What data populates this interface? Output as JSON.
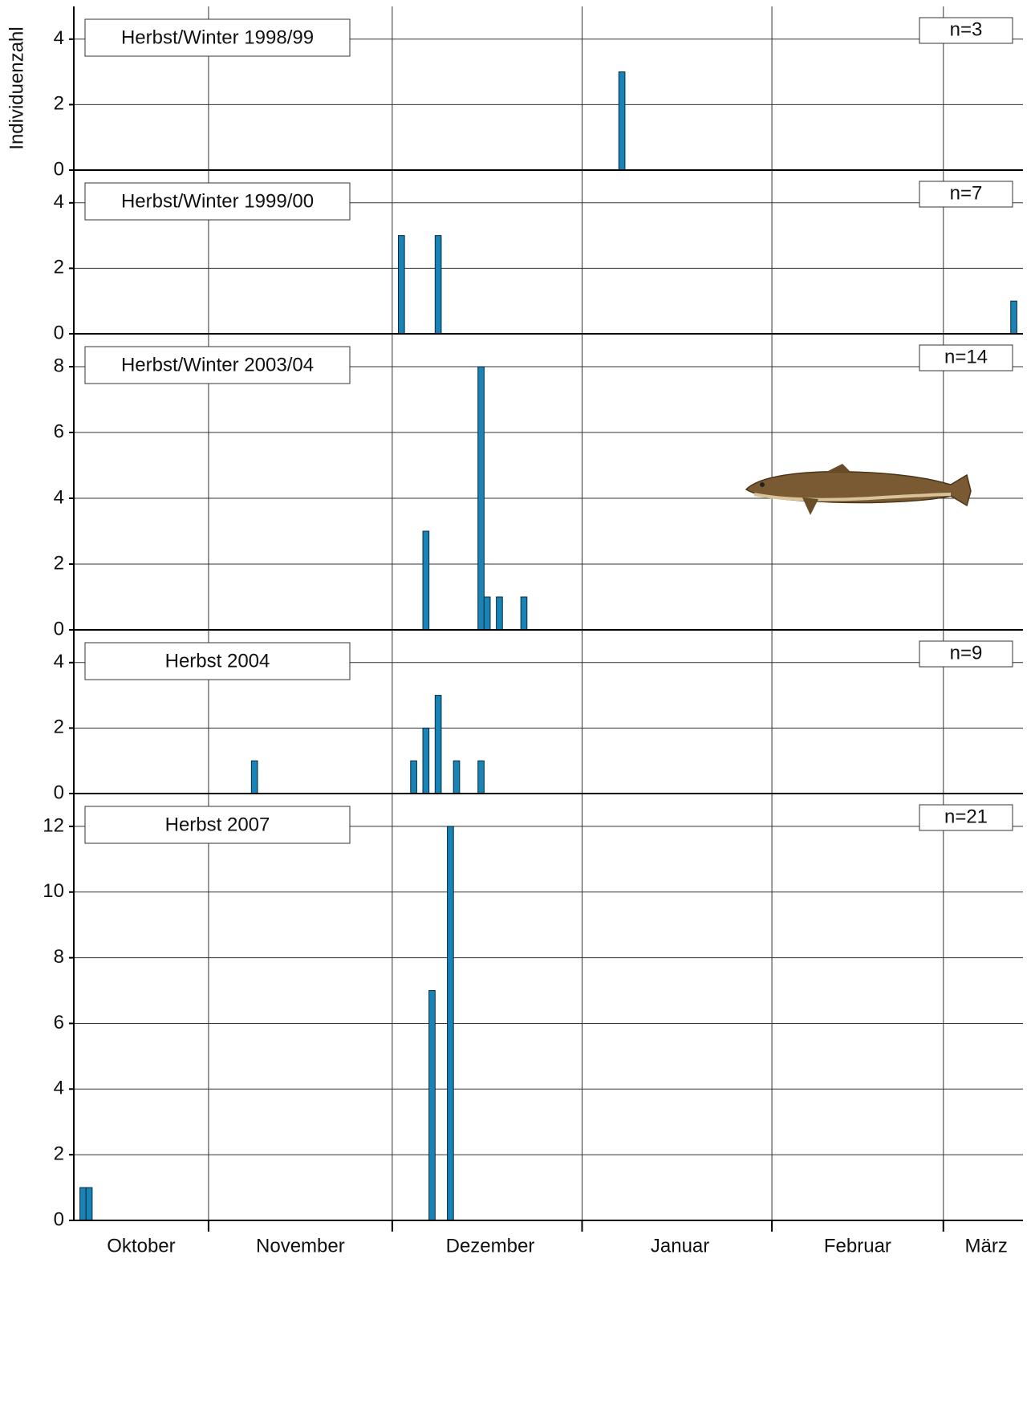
{
  "chart_data": [
    {
      "type": "bar",
      "title": "Herbst/Winter 1998/99",
      "annotation": "n=3",
      "ylabel": "Individuenzahl",
      "x": [
        98
      ],
      "values": [
        3
      ],
      "color": "#1883b6",
      "xlim": [
        9,
        164
      ],
      "xgrid": [
        31,
        61,
        92,
        123,
        151
      ],
      "ylim": [
        0,
        5
      ],
      "yticks": [
        0,
        2,
        4
      ],
      "grid": true
    },
    {
      "type": "bar",
      "title": "Herbst/Winter 1999/00",
      "annotation": "n=7",
      "x": [
        62,
        68,
        162
      ],
      "values": [
        3,
        3,
        1
      ],
      "color": "#1883b6",
      "xlim": [
        9,
        164
      ],
      "xgrid": [
        31,
        61,
        92,
        123,
        151
      ],
      "ylim": [
        0,
        5
      ],
      "yticks": [
        0,
        2,
        4
      ],
      "grid": true
    },
    {
      "type": "bar",
      "title": "Herbst/Winter 2003/04",
      "annotation": "n=14",
      "x": [
        66,
        75,
        76,
        78,
        82
      ],
      "values": [
        3,
        8,
        1,
        1,
        1
      ],
      "color": "#1883b6",
      "xlim": [
        9,
        164
      ],
      "xgrid": [
        31,
        61,
        92,
        123,
        151
      ],
      "ylim": [
        0,
        9
      ],
      "yticks": [
        0,
        2,
        4,
        6,
        8
      ],
      "grid": true
    },
    {
      "type": "bar",
      "title": "Herbst 2004",
      "annotation": "n=9",
      "x": [
        38,
        64,
        66,
        68,
        71,
        75
      ],
      "values": [
        1,
        1,
        2,
        3,
        1,
        1
      ],
      "color": "#1883b6",
      "xlim": [
        9,
        164
      ],
      "xgrid": [
        31,
        61,
        92,
        123,
        151
      ],
      "ylim": [
        0,
        5
      ],
      "yticks": [
        0,
        2,
        4
      ],
      "grid": true
    },
    {
      "type": "bar",
      "title": "Herbst 2007",
      "annotation": "n=21",
      "x": [
        10,
        11,
        67,
        70
      ],
      "values": [
        1,
        1,
        7,
        12
      ],
      "color": "#1883b6",
      "xlim": [
        9,
        164
      ],
      "xgrid": [
        31,
        61,
        92,
        123,
        151
      ],
      "xticks": [
        {
          "value": 20,
          "label": "Oktober"
        },
        {
          "value": 46,
          "label": "November"
        },
        {
          "value": 77,
          "label": "Dezember"
        },
        {
          "value": 108,
          "label": "Januar"
        },
        {
          "value": 137,
          "label": "Februar"
        },
        {
          "value": 158,
          "label": "März"
        }
      ],
      "ylim": [
        0,
        13
      ],
      "yticks": [
        0,
        2,
        4,
        6,
        8,
        10,
        12
      ],
      "grid": true
    }
  ]
}
